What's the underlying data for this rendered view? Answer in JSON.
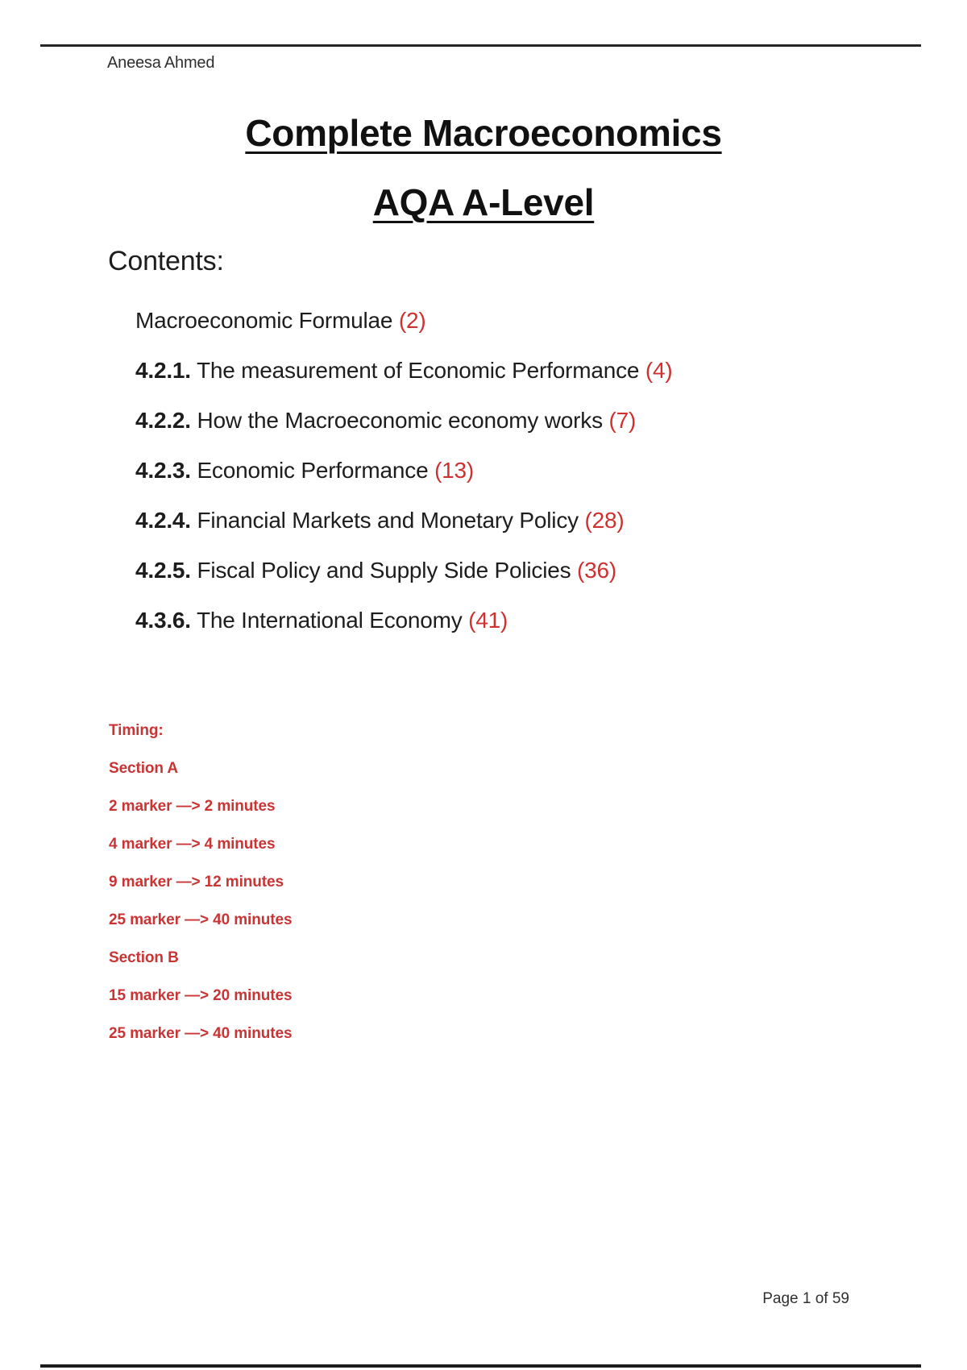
{
  "colors": {
    "accent-red": "#c93434",
    "toc-red": "#cf3030",
    "text-dark": "#1d1d1d",
    "muted-dark": "#2f2f2f",
    "rule": "#262626"
  },
  "header": {
    "author": "Aneesa Ahmed"
  },
  "titles": {
    "main": "Complete Macroeconomics",
    "sub": "AQA A-Level"
  },
  "contents": {
    "heading": "Contents:",
    "items": [
      {
        "num": "",
        "label": "Macroeconomic Formulae",
        "page": "(2)"
      },
      {
        "num": "4.2.1.",
        "label": "The measurement of Economic Performance",
        "page": "(4)"
      },
      {
        "num": "4.2.2.",
        "label": "How the Macroeconomic economy works",
        "page": "(7)"
      },
      {
        "num": "4.2.3.",
        "label": "Economic Performance",
        "page": "(13)"
      },
      {
        "num": "4.2.4.",
        "label": "Financial Markets and Monetary Policy",
        "page": "(28)"
      },
      {
        "num": "4.2.5.",
        "label": "Fiscal Policy and Supply Side Policies",
        "page": "(36)"
      },
      {
        "num": "4.3.6.",
        "label": "The International Economy",
        "page": "(41)"
      }
    ]
  },
  "timing": {
    "lines": [
      "Timing:",
      "Section A",
      "2 marker —> 2 minutes",
      "4 marker —> 4 minutes",
      "9 marker —> 12 minutes",
      "25 marker —> 40 minutes",
      "Section B",
      "15 marker —> 20 minutes",
      "25 marker —> 40 minutes"
    ]
  },
  "footer": {
    "page_indicator": "Page 1 of 59"
  }
}
